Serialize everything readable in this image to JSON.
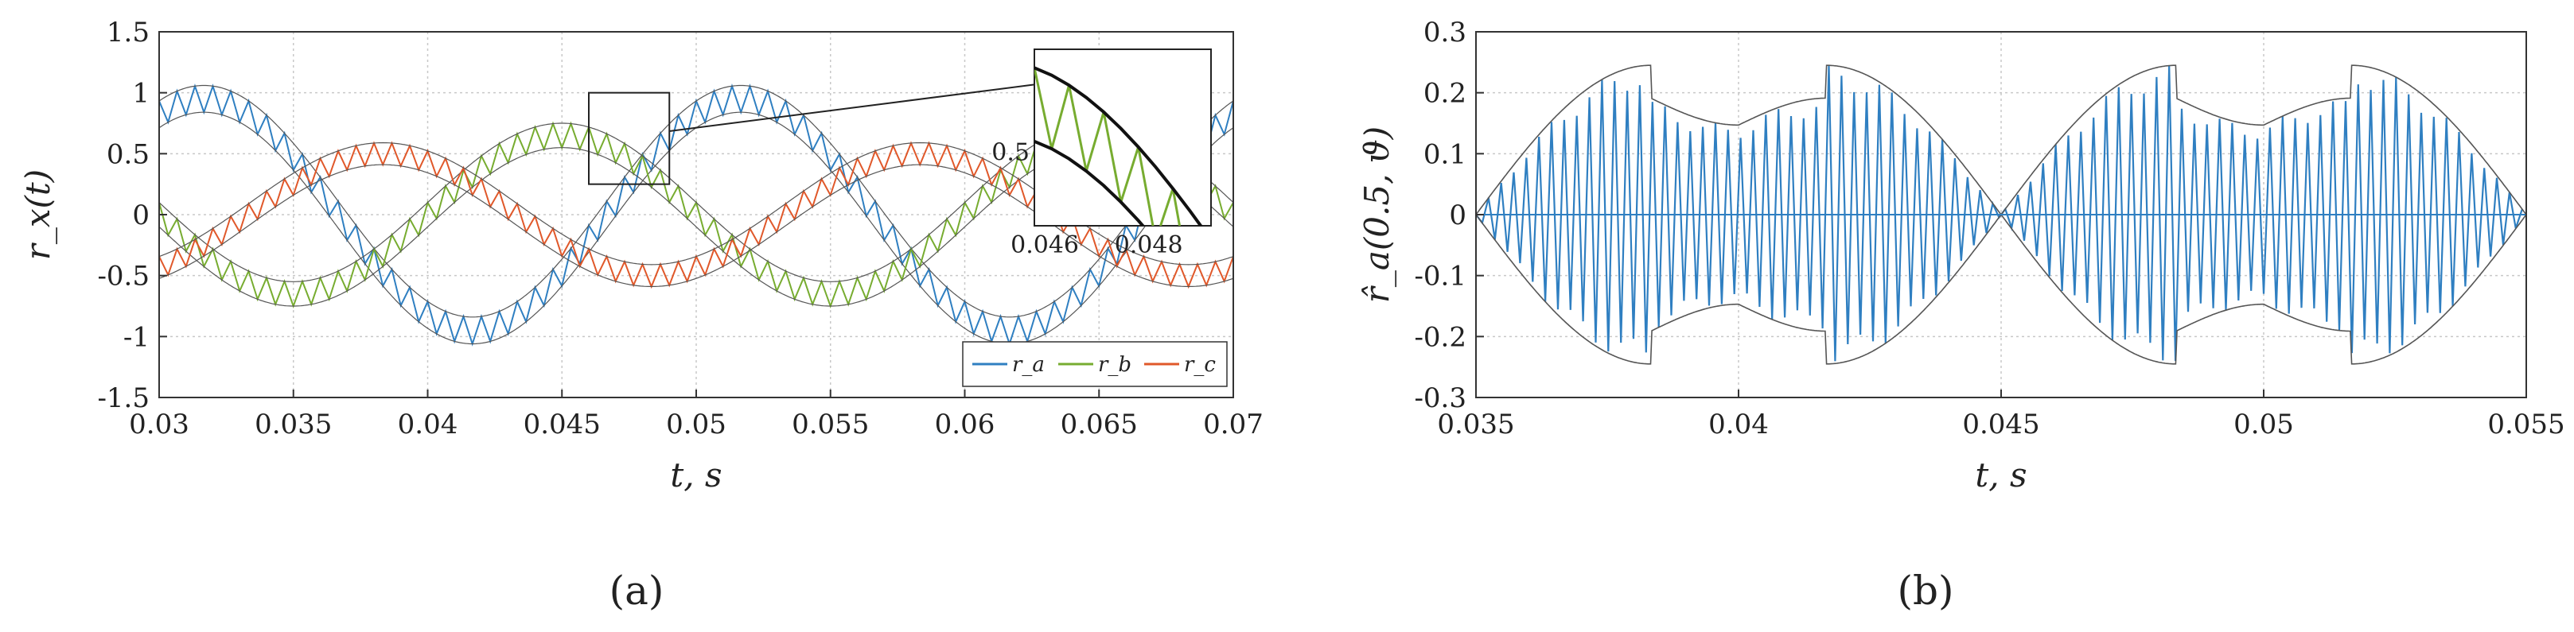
{
  "figure": {
    "panel_labels": [
      "(a)",
      "(b)"
    ]
  },
  "chart_data": [
    {
      "type": "line",
      "panel": "(a)",
      "xlabel": "t, s",
      "ylabel": "r_x(t)",
      "xlim": [
        0.03,
        0.07
      ],
      "ylim": [
        -1.5,
        1.5
      ],
      "xticks": [
        "0.03",
        "0.035",
        "0.04",
        "0.045",
        "0.05",
        "0.055",
        "0.06",
        "0.065",
        "0.07"
      ],
      "yticks": [
        "-1.5",
        "-1",
        "-0.5",
        "0",
        "0.5",
        "1",
        "1.5"
      ],
      "grid": true,
      "legend_placement": "bottom-right",
      "series": [
        {
          "name": "r_a",
          "color": "#2f7fc1",
          "amplitude": 0.95,
          "phase_deg": -120,
          "ripple": 0.22
        },
        {
          "name": "r_b",
          "color": "#77ac30",
          "amplitude": 0.65,
          "phase_deg": 0,
          "ripple": 0.2
        },
        {
          "name": "r_c",
          "color": "#e0582a",
          "amplitude": 0.5,
          "phase_deg": 120,
          "ripple": 0.18
        }
      ],
      "fundamental_hz": 50,
      "zoom_box": {
        "x": [
          0.046,
          0.049
        ],
        "y": [
          0.25,
          1.0
        ]
      },
      "inset": {
        "xlim": [
          0.0458,
          0.0492
        ],
        "ylim": [
          0.3,
          0.78
        ],
        "xticks": [
          "0.046",
          "0.048"
        ],
        "yticks": [
          "0.5"
        ]
      }
    },
    {
      "type": "line",
      "panel": "(b)",
      "xlabel": "t, s",
      "ylabel": "r̂_a(0.5, ϑ)",
      "xlim": [
        0.035,
        0.055
      ],
      "ylim": [
        -0.3,
        0.3
      ],
      "xticks": [
        "0.035",
        "0.04",
        "0.045",
        "0.05",
        "0.055"
      ],
      "yticks": [
        "0.3",
        "0.2",
        "0.1",
        "0",
        "-0.1",
        "-0.2",
        "-0.3"
      ],
      "grid": true,
      "series": [
        {
          "name": "r̂_a",
          "color": "#2f7fc1"
        }
      ],
      "envelope_peak": 0.245,
      "envelope_zero_times": [
        0.035,
        0.045,
        0.055
      ],
      "envelope_peak_times": [
        0.0383,
        0.0417,
        0.0483,
        0.0517
      ]
    }
  ]
}
